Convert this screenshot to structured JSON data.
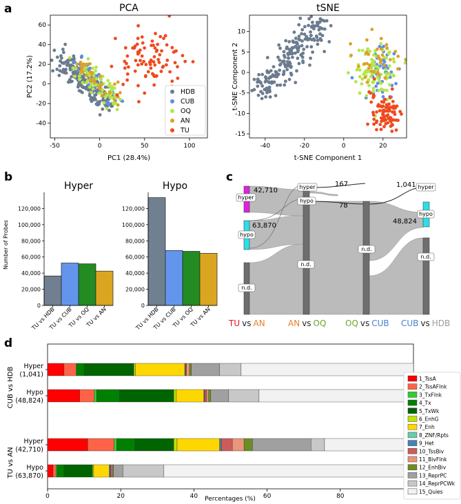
{
  "panel_labels": {
    "a": "a",
    "b": "b",
    "c": "c",
    "d": "d"
  },
  "colors": {
    "HDB": "#6b7b8f",
    "CUB": "#5b8ee6",
    "OQ": "#b4e64a",
    "AN": "#e0a028",
    "TU": "#ef4a1f",
    "hyper_box": "#e020e0",
    "hypo_box": "#28e0e8",
    "nd_box": "#6e6e6e",
    "flow": "#b8b8b8",
    "bar_hdb": "#708090",
    "bar_cub": "#6495ed",
    "bar_oq": "#228b22",
    "bar_an": "#daa520",
    "sankey_tu": "#e8101a",
    "sankey_an": "#e8802a",
    "sankey_oq": "#6aa82e",
    "sankey_cub": "#4a7fd0",
    "sankey_hdb": "#9a9a9a"
  },
  "chart_data": [
    {
      "id": "pca",
      "type": "scatter",
      "title": "PCA",
      "xlabel": "PC1 (28.4%)",
      "ylabel": "PC2 (17.2%)",
      "xlim": [
        -55,
        120
      ],
      "ylim": [
        -55,
        70
      ],
      "xticks": [
        -50,
        0,
        50,
        100
      ],
      "yticks": [
        -40,
        -20,
        0,
        20,
        40,
        60
      ],
      "legend_position": "lower-right",
      "series": [
        {
          "name": "HDB",
          "center": [
            -15,
            -8
          ],
          "spread": [
            20,
            15
          ],
          "count": 180
        },
        {
          "name": "CUB",
          "center": [
            8,
            -12
          ],
          "spread": [
            12,
            8
          ],
          "count": 40
        },
        {
          "name": "OQ",
          "center": [
            -5,
            -8
          ],
          "spread": [
            14,
            10
          ],
          "count": 70
        },
        {
          "name": "AN",
          "center": [
            5,
            -5
          ],
          "spread": [
            18,
            14
          ],
          "count": 35
        },
        {
          "name": "TU",
          "center": [
            55,
            25
          ],
          "spread": [
            28,
            18
          ],
          "count": 90
        }
      ]
    },
    {
      "id": "tsne",
      "type": "scatter",
      "title": "tSNE",
      "xlabel": "t-SNE Component 1",
      "ylabel": "t-SNE Component 2",
      "xlim": [
        -48,
        32
      ],
      "ylim": [
        -16,
        14
      ],
      "xticks": [
        -40,
        -20,
        0,
        20
      ],
      "yticks": [
        -15,
        -10,
        -5,
        0,
        5,
        10
      ],
      "series": [
        {
          "name": "HDB",
          "center": [
            -28,
            0
          ],
          "spread": [
            8,
            6
          ],
          "count": 200
        },
        {
          "name": "CUB",
          "center": [
            18,
            0
          ],
          "spread": [
            5,
            3
          ],
          "count": 50
        },
        {
          "name": "OQ",
          "center": [
            17,
            0
          ],
          "spread": [
            6,
            3
          ],
          "count": 90
        },
        {
          "name": "AN",
          "center": [
            18,
            3
          ],
          "spread": [
            6,
            3
          ],
          "count": 35
        },
        {
          "name": "TU",
          "center": [
            21,
            -10
          ],
          "spread": [
            4,
            2.5
          ],
          "count": 90
        }
      ]
    },
    {
      "id": "hyper",
      "type": "bar",
      "title": "Hyper",
      "ylabel": "Number of Probes",
      "ylim": [
        0,
        140000
      ],
      "yticks": [
        "0",
        "20,000",
        "40,000",
        "60,000",
        "80,000",
        "100,000",
        "120,000"
      ],
      "categories": [
        "TU vs HDB",
        "TU vs CUB",
        "TU vs OQ",
        "TU vs AN"
      ],
      "values": [
        36500,
        52500,
        51500,
        42500
      ]
    },
    {
      "id": "hypo",
      "type": "bar",
      "title": "Hypo",
      "ylim": [
        0,
        140000
      ],
      "yticks": [
        "0",
        "20,000",
        "40,000",
        "60,000",
        "80,000",
        "100,000",
        "120,000"
      ],
      "categories": [
        "TU vs HDB",
        "TU vs CUB",
        "TU vs OQ",
        "TU vs AN"
      ],
      "values": [
        133500,
        68000,
        67000,
        64500
      ]
    },
    {
      "id": "chromatin",
      "type": "bar",
      "orientation": "horizontal-stacked",
      "xlabel": "Percentages (%)",
      "xlim": [
        0,
        100
      ],
      "xticks": [
        0,
        20,
        40,
        60,
        80,
        100
      ],
      "states": [
        "1_TssA",
        "2_TssAFlnk",
        "3_TxFlnk",
        "4_Tx",
        "5_TxWk",
        "6_EnhG",
        "7_Enh",
        "8_ZNF/Rpts",
        "9_Het",
        "10_TssBiv",
        "11_BivFlnk",
        "12_EnhBiv",
        "13_ReprPC",
        "14_ReprPCWk",
        "15_Quies"
      ],
      "state_colors": [
        "#ff0000",
        "#ff6347",
        "#32cd32",
        "#008000",
        "#006400",
        "#c2e105",
        "#ffd700",
        "#66cdaa",
        "#4682b4",
        "#cd5c5c",
        "#e9967a",
        "#6b8e23",
        "#a0a0a0",
        "#c8c8c8",
        "#f2f2f2"
      ],
      "rows": [
        {
          "group": "CUB vs HDB",
          "label": "Hyper",
          "count": "(1,041)",
          "values": [
            4.5,
            3.3,
            0.2,
            2.0,
            13.6,
            0.4,
            13.5,
            0.1,
            0.1,
            0.3,
            0.8,
            0.5,
            7.7,
            5.9,
            47.1
          ]
        },
        {
          "group": "CUB vs HDB",
          "label": "Hypo",
          "count": "(48,824)",
          "values": [
            8.8,
            4.0,
            0.6,
            6.3,
            14.8,
            0.7,
            7.5,
            0.1,
            0.2,
            0.5,
            0.5,
            0.6,
            4.9,
            8.3,
            42.2
          ]
        },
        {
          "group": "TU vs AN",
          "label": "Hyper",
          "count": "(42,710)",
          "values": [
            11.0,
            7.2,
            0.7,
            5.0,
            10.6,
            0.9,
            11.6,
            0.2,
            0.3,
            3.0,
            3.2,
            2.3,
            16.0,
            3.7,
            24.3
          ]
        },
        {
          "group": "TU vs AN",
          "label": "Hypo",
          "count": "(63,870)",
          "values": [
            1.5,
            0.8,
            0.3,
            1.9,
            7.8,
            0.3,
            4.2,
            0.2,
            0.2,
            0.3,
            0.3,
            0.2,
            2.6,
            11.2,
            68.2
          ]
        }
      ]
    }
  ],
  "sankey": {
    "node_labels": {
      "hyper": "hyper",
      "hypo": "hypo",
      "nd": "n.d."
    },
    "flow_numbers": {
      "n42710": "42,710",
      "n63870": "63,870",
      "n167": "167",
      "n78": "78",
      "n1041": "1,041",
      "n48824": "48,824"
    },
    "comparisons": [
      {
        "a": "TU",
        "vs": "vs",
        "b": "AN"
      },
      {
        "a": "AN",
        "vs": "vs",
        "b": "OQ"
      },
      {
        "a": "OQ",
        "vs": "vs",
        "b": "CUB"
      },
      {
        "a": "CUB",
        "vs": "vs",
        "b": "HDB"
      }
    ]
  }
}
